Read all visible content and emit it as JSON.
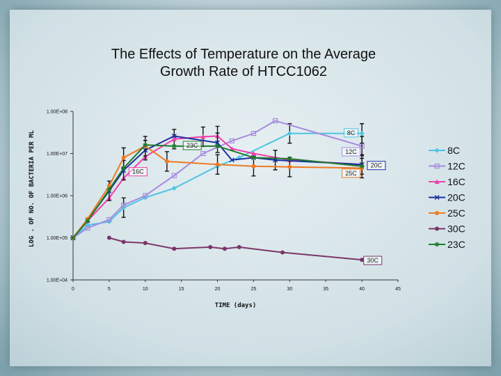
{
  "chart_data": {
    "type": "line",
    "title": [
      "The Effects of Temperature on the Average",
      "Growth Rate of HTCC1062"
    ],
    "xlabel": "TIME (days)",
    "ylabel": "LOG . OF NO. OF BACTERIA PER ML",
    "x_ticks": [
      "0",
      "5",
      "10",
      "15",
      "20",
      "25",
      "30",
      "35",
      "40",
      "45"
    ],
    "y_ticks": [
      "1.00E+04",
      "1.00E+05",
      "1.00E+06",
      "1.00E+07",
      "1.00E+08"
    ],
    "xlim": [
      0,
      45
    ],
    "ylim_log10": [
      4,
      8
    ],
    "y_scale": "log",
    "legend_position": "right",
    "series": [
      {
        "name": "8C",
        "color": "#4dc3e3",
        "marker": "diamond",
        "x": [
          0,
          2,
          5,
          7,
          10,
          14,
          20,
          23,
          30,
          40
        ],
        "y": [
          100000,
          200000,
          240000,
          520000,
          900000,
          1500000,
          5000000,
          8000000,
          30000000,
          30000000
        ],
        "err": [
          0,
          0,
          0,
          1,
          0,
          0,
          0,
          0,
          1,
          1
        ]
      },
      {
        "name": "12C",
        "color": "#a78ae0",
        "marker": "square",
        "x": [
          0,
          2,
          5,
          7,
          10,
          14,
          18,
          22,
          25,
          28,
          40
        ],
        "y": [
          100000,
          170000,
          270000,
          600000,
          1000000,
          3000000,
          10000000,
          20000000,
          30000000,
          60000000,
          15000000
        ],
        "err": [
          0,
          0,
          0,
          0,
          0,
          0,
          0,
          0,
          0,
          0,
          1
        ]
      },
      {
        "name": "16C",
        "color": "#ef3fa8",
        "marker": "triangle",
        "x": [
          0,
          2,
          5,
          7,
          10,
          14,
          18,
          20,
          22,
          25,
          30,
          40
        ],
        "y": [
          100000,
          250000,
          880000,
          2600000,
          8400000,
          22000000,
          25000000,
          26000000,
          13000000,
          10000000,
          7000000,
          5500000
        ],
        "err": [
          0,
          0,
          0,
          0,
          0,
          1,
          1,
          1,
          0,
          0,
          0,
          0
        ]
      },
      {
        "name": "20C",
        "color": "#1b2ea0",
        "marker": "x",
        "x": [
          0,
          2,
          5,
          7,
          10,
          14,
          20,
          22,
          25,
          28,
          40
        ],
        "y": [
          100000,
          260000,
          1300000,
          4000000,
          12000000,
          26000000,
          18000000,
          7000000,
          8000000,
          7000000,
          5500000
        ],
        "err": [
          0,
          0,
          1,
          1,
          1,
          0,
          1,
          0,
          0,
          1,
          1
        ]
      },
      {
        "name": "25C",
        "color": "#ee7a22",
        "marker": "circle",
        "x": [
          0,
          2,
          5,
          7,
          10,
          13,
          20,
          25,
          30,
          40
        ],
        "y": [
          100000,
          280000,
          1700000,
          8000000,
          15000000,
          6500000,
          5500000,
          5000000,
          4800000,
          4500000
        ],
        "err": [
          0,
          0,
          0,
          1,
          1,
          1,
          1,
          1,
          1,
          1
        ]
      },
      {
        "name": "30C",
        "color": "#7a3568",
        "marker": "circle",
        "x": [
          5,
          7,
          10,
          14,
          19,
          21,
          23,
          29,
          40
        ],
        "y": [
          100000,
          80000,
          75000,
          55000,
          60000,
          55000,
          60000,
          45000,
          30000
        ],
        "err": [
          0,
          0,
          0,
          0,
          0,
          0,
          0,
          0,
          0
        ]
      },
      {
        "name": "23C",
        "color": "#1f7a2c",
        "marker": "star",
        "x": [
          0,
          2,
          5,
          7,
          10,
          14,
          20,
          25,
          30,
          40
        ],
        "y": [
          100000,
          250000,
          1400000,
          4500000,
          16000000,
          15000000,
          15000000,
          8000000,
          7500000,
          5000000
        ],
        "err": [
          0,
          0,
          0,
          0,
          0,
          0,
          0,
          0,
          0,
          0
        ]
      }
    ],
    "callouts": [
      {
        "text": "8C",
        "color": "#4dc3e3",
        "x": 38.5,
        "y": 31000000
      },
      {
        "text": "23C",
        "color": "#1f7a2c",
        "x": 16.5,
        "y": 15500000
      },
      {
        "text": "12C",
        "color": "#a78ae0",
        "x": 38.5,
        "y": 11000000
      },
      {
        "text": "16C",
        "color": "#ef3fa8",
        "x": 9,
        "y": 3700000
      },
      {
        "text": "20C",
        "color": "#1b2ea0",
        "x": 42,
        "y": 5200000
      },
      {
        "text": "25C",
        "color": "#ee7a22",
        "x": 38.5,
        "y": 3400000
      },
      {
        "text": "30C",
        "color": "#7a3568",
        "x": 41.5,
        "y": 29000
      }
    ]
  }
}
